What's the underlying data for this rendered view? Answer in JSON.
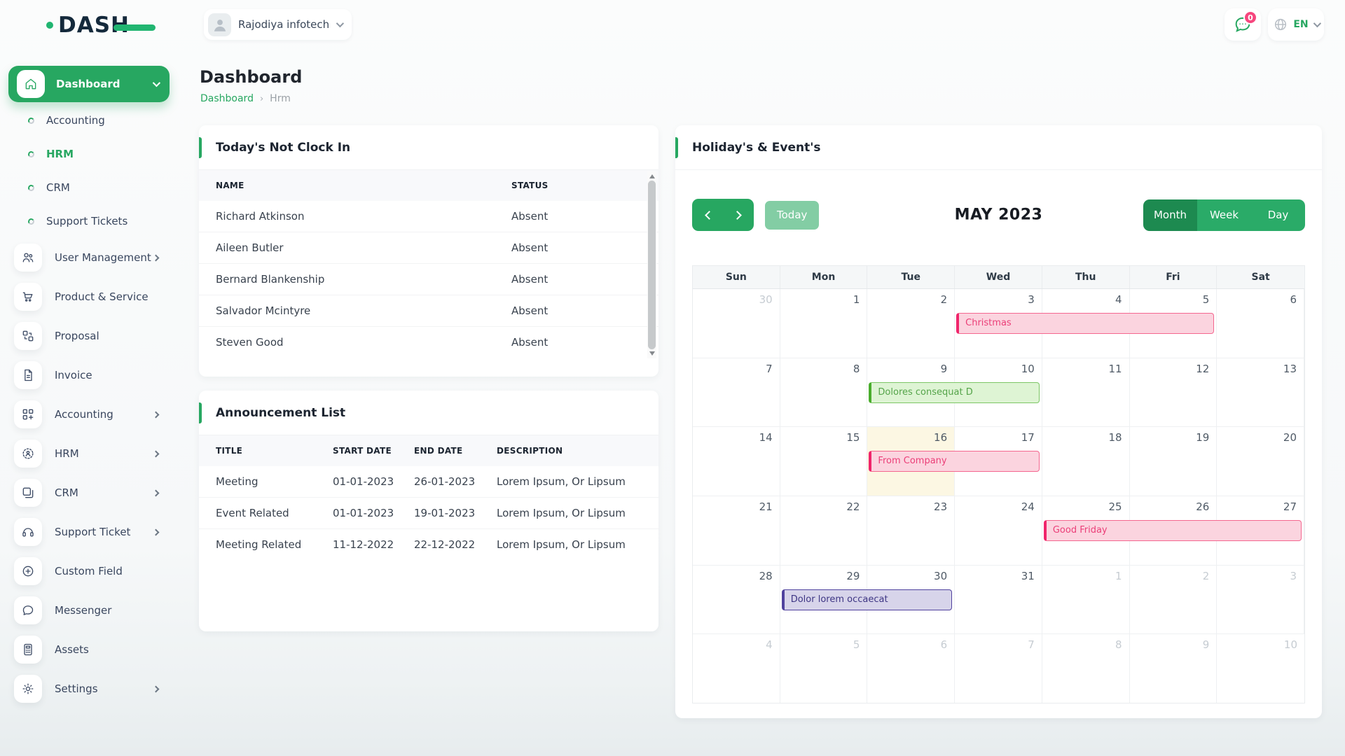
{
  "topbar": {
    "logo_text": "DASH",
    "company": "Rajodiya infotech",
    "messages_badge": "0",
    "language": "EN"
  },
  "sidebar": {
    "items": [
      {
        "label": "Dashboard",
        "type": "pill",
        "icon": "home",
        "chevron": "down",
        "active": true
      },
      {
        "label": "Accounting",
        "type": "sub"
      },
      {
        "label": "HRM",
        "type": "sub",
        "active": true
      },
      {
        "label": "CRM",
        "type": "sub"
      },
      {
        "label": "Support Tickets",
        "type": "sub"
      },
      {
        "label": "User Management",
        "type": "icon",
        "icon": "users",
        "chevron": "right"
      },
      {
        "label": "Product & Service",
        "type": "icon",
        "icon": "cart"
      },
      {
        "label": "Proposal",
        "type": "icon",
        "icon": "squares"
      },
      {
        "label": "Invoice",
        "type": "icon",
        "icon": "file"
      },
      {
        "label": "Accounting",
        "type": "icon",
        "icon": "grid",
        "chevron": "right"
      },
      {
        "label": "HRM",
        "type": "icon",
        "icon": "person",
        "chevron": "right"
      },
      {
        "label": "CRM",
        "type": "icon",
        "icon": "layers",
        "chevron": "right"
      },
      {
        "label": "Support Ticket",
        "type": "icon",
        "icon": "headset",
        "chevron": "right"
      },
      {
        "label": "Custom Field",
        "type": "icon",
        "icon": "plus"
      },
      {
        "label": "Messenger",
        "type": "icon",
        "icon": "chat"
      },
      {
        "label": "Assets",
        "type": "icon",
        "icon": "calc"
      },
      {
        "label": "Settings",
        "type": "icon",
        "icon": "gear",
        "chevron": "right"
      }
    ]
  },
  "page": {
    "title": "Dashboard",
    "breadcrumb": [
      "Dashboard",
      "Hrm"
    ]
  },
  "clockin_card": {
    "title": "Today's Not Clock In",
    "columns": [
      "NAME",
      "STATUS"
    ],
    "rows": [
      [
        "Richard Atkinson",
        "Absent"
      ],
      [
        "Aileen Butler",
        "Absent"
      ],
      [
        "Bernard Blankenship",
        "Absent"
      ],
      [
        "Salvador Mcintyre",
        "Absent"
      ],
      [
        "Steven Good",
        "Absent"
      ]
    ]
  },
  "announcement_card": {
    "title": "Announcement List",
    "columns": [
      "TITLE",
      "START DATE",
      "END DATE",
      "DESCRIPTION"
    ],
    "rows": [
      [
        "Meeting",
        "01-01-2023",
        "26-01-2023",
        "Lorem Ipsum, Or Lipsum"
      ],
      [
        "Event Related",
        "01-01-2023",
        "19-01-2023",
        "Lorem Ipsum, Or Lipsum"
      ],
      [
        "Meeting Related",
        "11-12-2022",
        "22-12-2022",
        "Lorem Ipsum, Or Lipsum"
      ]
    ]
  },
  "calendar_card": {
    "title": "Holiday's & Event's",
    "toolbar": {
      "today_label": "Today",
      "month_label": "MAY 2023",
      "views": [
        "Month",
        "Week",
        "Day"
      ],
      "active_view": "Month"
    },
    "weekdays": [
      "Sun",
      "Mon",
      "Tue",
      "Wed",
      "Thu",
      "Fri",
      "Sat"
    ],
    "weeks": [
      {
        "days": [
          {
            "n": 30,
            "muted": true
          },
          {
            "n": 1
          },
          {
            "n": 2
          },
          {
            "n": 3
          },
          {
            "n": 4
          },
          {
            "n": 5
          },
          {
            "n": 6
          }
        ]
      },
      {
        "days": [
          {
            "n": 7
          },
          {
            "n": 8
          },
          {
            "n": 9
          },
          {
            "n": 10
          },
          {
            "n": 11
          },
          {
            "n": 12
          },
          {
            "n": 13
          }
        ]
      },
      {
        "days": [
          {
            "n": 14
          },
          {
            "n": 15
          },
          {
            "n": 16,
            "today": true
          },
          {
            "n": 17
          },
          {
            "n": 18
          },
          {
            "n": 19
          },
          {
            "n": 20
          }
        ]
      },
      {
        "days": [
          {
            "n": 21
          },
          {
            "n": 22
          },
          {
            "n": 23
          },
          {
            "n": 24
          },
          {
            "n": 25
          },
          {
            "n": 26
          },
          {
            "n": 27
          }
        ]
      },
      {
        "days": [
          {
            "n": 28
          },
          {
            "n": 29
          },
          {
            "n": 30
          },
          {
            "n": 31
          },
          {
            "n": 1,
            "muted": true
          },
          {
            "n": 2,
            "muted": true
          },
          {
            "n": 3,
            "muted": true
          }
        ]
      },
      {
        "days": [
          {
            "n": 4,
            "muted": true
          },
          {
            "n": 5,
            "muted": true
          },
          {
            "n": 6,
            "muted": true
          },
          {
            "n": 7,
            "muted": true
          },
          {
            "n": 8,
            "muted": true
          },
          {
            "n": 9,
            "muted": true
          },
          {
            "n": 10,
            "muted": true
          }
        ]
      }
    ],
    "events": [
      {
        "title": "Christmas",
        "week": 0,
        "col": 3,
        "span": 3,
        "color": "pink"
      },
      {
        "title": "Dolores consequat D",
        "week": 1,
        "col": 2,
        "span": 2,
        "color": "green"
      },
      {
        "title": "From Company",
        "week": 2,
        "col": 2,
        "span": 2,
        "color": "pink"
      },
      {
        "title": "Good Friday",
        "week": 3,
        "col": 4,
        "span": 3,
        "color": "pink"
      },
      {
        "title": "Dolor lorem occaecat",
        "week": 4,
        "col": 1,
        "span": 2,
        "color": "purple"
      }
    ]
  },
  "colors": {
    "primary_green": "#27a761",
    "active_view_green": "#1d8a50",
    "today_button_green": "#83cda4",
    "badge_pink": "#f6477e",
    "event_pink": "#f0256b",
    "event_green": "#49ad2c",
    "event_purple": "#50429e",
    "today_cell_yellow": "#fcf7e3",
    "logo_navy": "#14293b"
  }
}
